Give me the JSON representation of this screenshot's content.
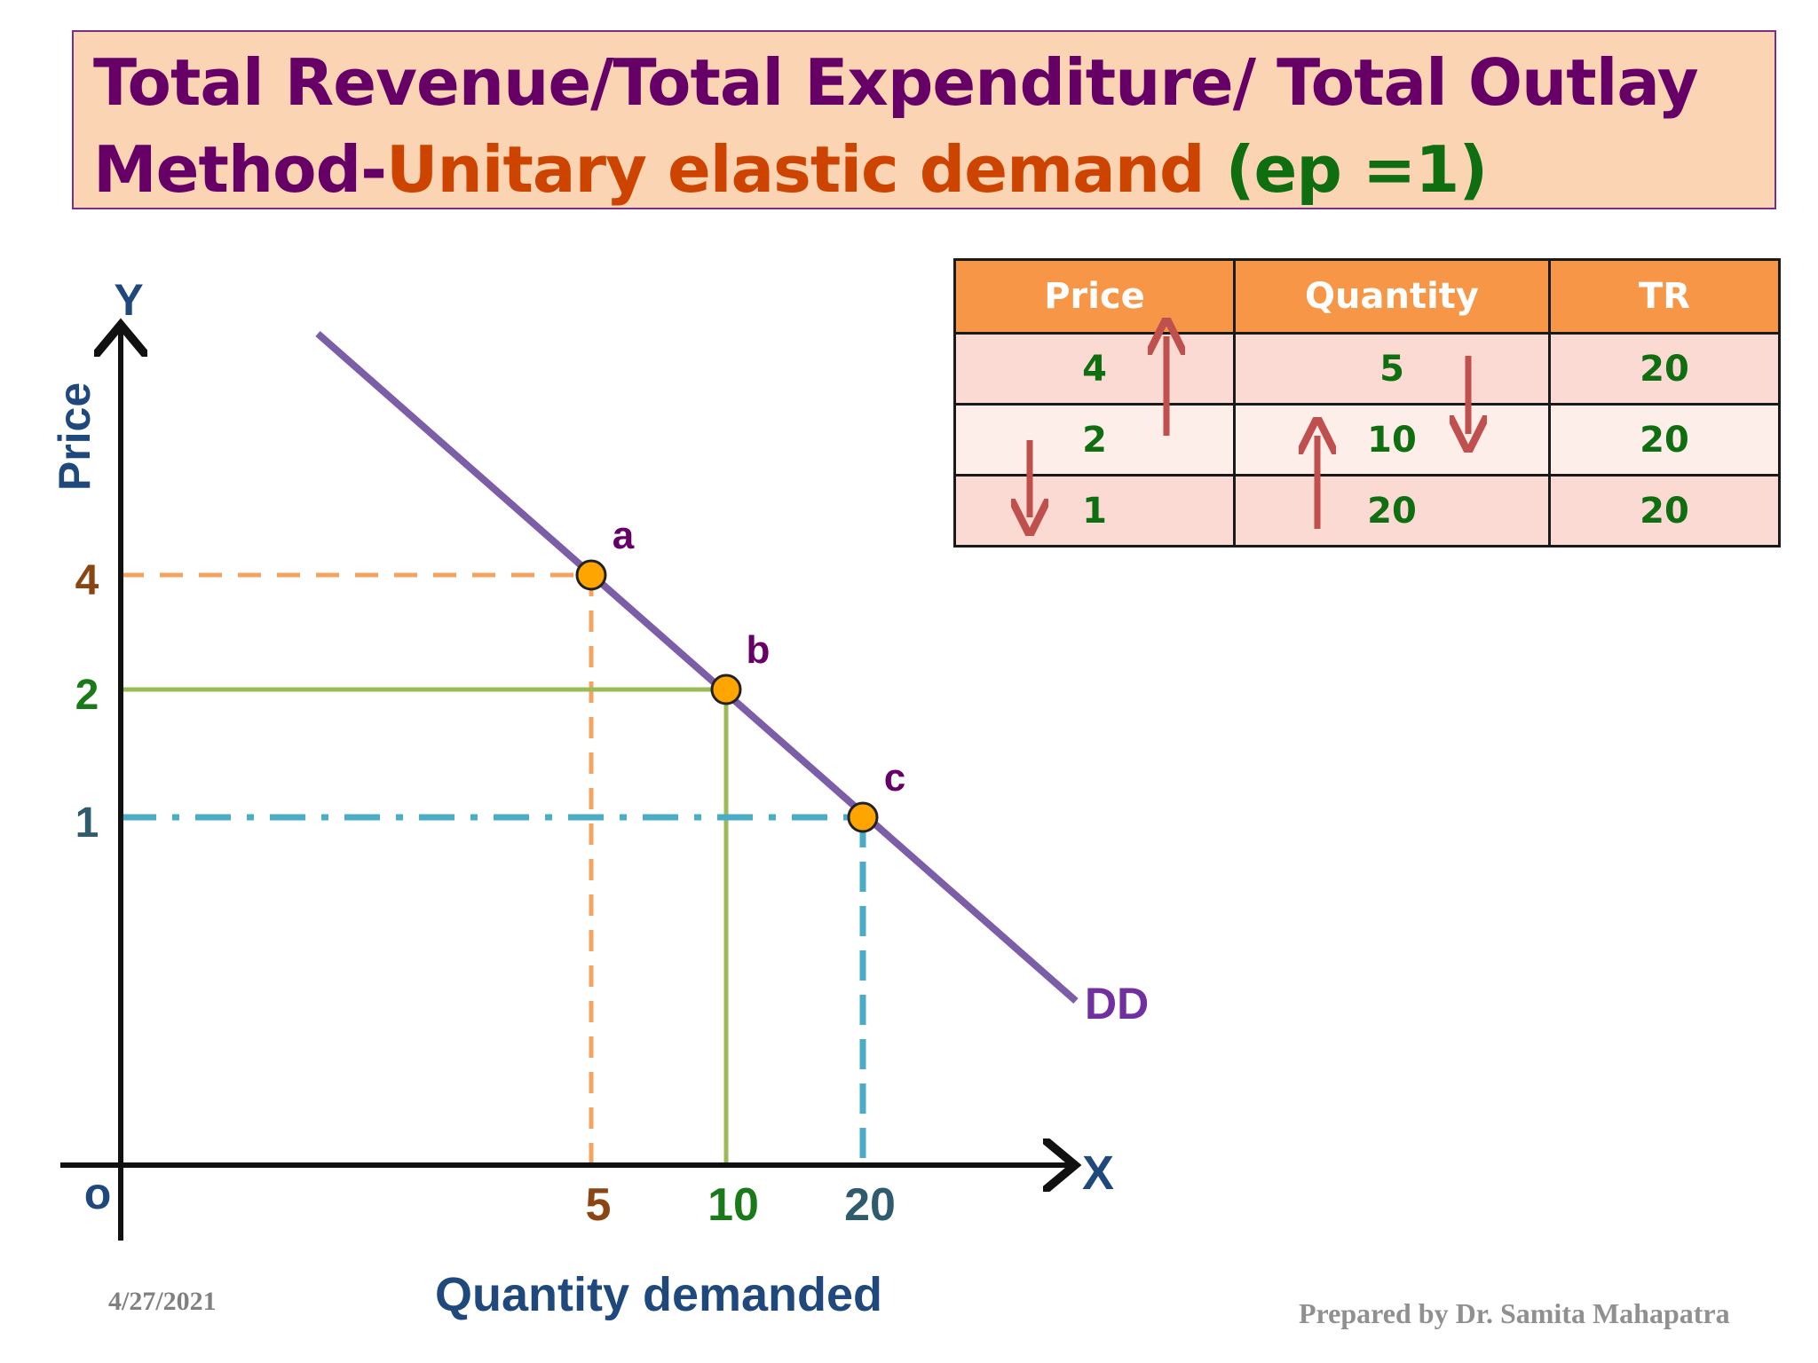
{
  "title": {
    "line1": "Total Revenue/Total Expenditure/ Total Outlay",
    "line2_part1": "Method-",
    "line2_part2": "Unitary elastic demand",
    "line2_part3": "(ep =1)"
  },
  "colors": {
    "title_purple": "#660066",
    "title_orange": "#cc4400",
    "title_green": "#0f6e0f",
    "title_bg": "#fbd4b4",
    "table_header": "#f79646",
    "demand_curve": "#7b5ea7",
    "point_fill": "#ffa500",
    "line_a": "#f4a460",
    "line_b": "#9bbb59",
    "line_c": "#4bacc6",
    "axis_label": "#1f497d",
    "arrow": "#c0504d"
  },
  "table": {
    "headers": [
      "Price",
      "Quantity",
      "TR"
    ],
    "rows": [
      [
        "4",
        "5",
        "20"
      ],
      [
        "2",
        "10",
        "20"
      ],
      [
        "1",
        "20",
        "20"
      ]
    ],
    "arrow_notes": {
      "price": [
        "up",
        "down"
      ],
      "quantity": [
        "down",
        "up"
      ]
    }
  },
  "chart_data": {
    "type": "line",
    "title": "",
    "xlabel": "Quantity demanded",
    "ylabel": "Price",
    "x_axis_letter": "X",
    "y_axis_letter": "Y",
    "origin_label": "o",
    "curve_label": "DD",
    "points": [
      {
        "label": "a",
        "quantity": 5,
        "price": 4,
        "quantity_tick": "5",
        "price_tick": "4",
        "tick_color": "#8b4513",
        "line_color": "#f4a460",
        "style": "dashed"
      },
      {
        "label": "b",
        "quantity": 10,
        "price": 2,
        "quantity_tick": "10",
        "price_tick": "2",
        "tick_color": "#1a7a1a",
        "line_color": "#9bbb59",
        "style": "solid"
      },
      {
        "label": "c",
        "quantity": 20,
        "price": 1,
        "quantity_tick": "20",
        "price_tick": "1",
        "tick_color": "#2f5b6e",
        "line_color": "#4bacc6",
        "style": "dashdot"
      }
    ],
    "grid": false,
    "legend": "none"
  },
  "footer": {
    "date": "4/27/2021",
    "credit": "Prepared by Dr. Samita Mahapatra"
  }
}
